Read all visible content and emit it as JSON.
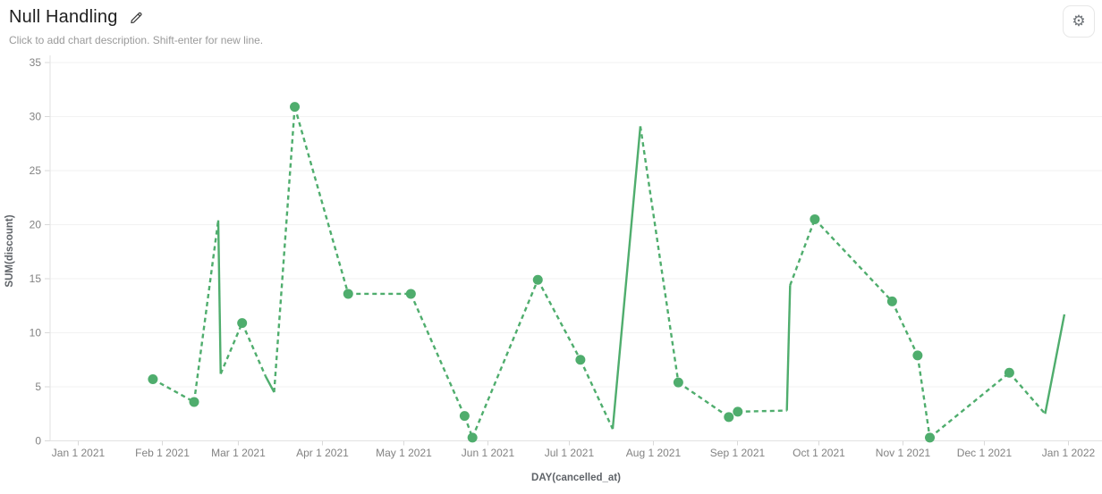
{
  "header": {
    "title": "Null Handling",
    "description_placeholder": "Click to add chart description. Shift-enter for new line."
  },
  "settings": {
    "gear_glyph": "⚙"
  },
  "colors": {
    "series_green": "#4FAD6D",
    "gridline": "#f2f2f2",
    "axis_line": "#e2e2e2",
    "tick_mark": "#d9d9d9",
    "tick_text": "#828282",
    "axis_title_text": "#5f6368",
    "title_text": "#1f1f1f",
    "description_text": "#9a9a9a"
  },
  "chart_data": {
    "type": "line",
    "title": "Null Handling",
    "xlabel": "DAY(cancelled_at)",
    "ylabel": "SUM(discount)",
    "legend": "none",
    "grid": "horizontal",
    "x_axis": {
      "start": "Jan 1 2021",
      "end": "Jan 1 2022",
      "tick_days": [
        0,
        31,
        59,
        90,
        120,
        151,
        181,
        212,
        243,
        273,
        304,
        334,
        365
      ],
      "tick_labels": [
        "Jan 1 2021",
        "Feb 1 2021",
        "Mar 1 2021",
        "Apr 1 2021",
        "May 1 2021",
        "Jun 1 2021",
        "Jul 1 2021",
        "Aug 1 2021",
        "Sep 1 2021",
        "Oct 1 2021",
        "Nov 1 2021",
        "Dec 1 2021",
        "Jan 1 2022"
      ]
    },
    "y_axis": {
      "min": 0,
      "max": 35,
      "ticks": [
        0,
        5,
        10,
        15,
        20,
        25,
        30,
        35
      ]
    },
    "line_style_note": "dashed line with round markers; solid segments bridge null values (no marker at solid-bridge vertices)",
    "series": [
      {
        "name": "SUM(discount)",
        "color": "#4FAD6D",
        "points": [
          {
            "day": 27.5,
            "date": "Jan 28 2021",
            "value": 5.7,
            "marker": true,
            "solid_to_next": false
          },
          {
            "day": 42.7,
            "date": "Feb 12 2021",
            "value": 3.6,
            "marker": true,
            "solid_to_next": false
          },
          {
            "day": 51.6,
            "date": "Feb 22 2021",
            "value": 20.4,
            "marker": false,
            "solid_to_next": true
          },
          {
            "day": 52.5,
            "date": "Feb 22 2021",
            "value": 6.2,
            "marker": false,
            "solid_to_next": false
          },
          {
            "day": 60.4,
            "date": "Mar 2 2021",
            "value": 10.9,
            "marker": true,
            "solid_to_next": false
          },
          {
            "day": 69.0,
            "date": "Mar 11 2021",
            "value": 6.0,
            "marker": false,
            "solid_to_next": true
          },
          {
            "day": 72.2,
            "date": "Mar 14 2021",
            "value": 4.5,
            "marker": false,
            "solid_to_next": false
          },
          {
            "day": 79.8,
            "date": "Mar 21 2021",
            "value": 30.9,
            "marker": true,
            "solid_to_next": false
          },
          {
            "day": 99.5,
            "date": "Apr 10 2021",
            "value": 13.6,
            "marker": true,
            "solid_to_next": false
          },
          {
            "day": 122.6,
            "date": "May 3 2021",
            "value": 13.6,
            "marker": true,
            "solid_to_next": false
          },
          {
            "day": 142.4,
            "date": "May 23 2021",
            "value": 2.3,
            "marker": true,
            "solid_to_next": false
          },
          {
            "day": 145.3,
            "date": "May 26 2021",
            "value": 0.3,
            "marker": true,
            "solid_to_next": false
          },
          {
            "day": 169.4,
            "date": "Jun 19 2021",
            "value": 14.9,
            "marker": true,
            "solid_to_next": false
          },
          {
            "day": 185.1,
            "date": "Jul 5 2021",
            "value": 7.5,
            "marker": true,
            "solid_to_next": false
          },
          {
            "day": 197.0,
            "date": "Jul 17 2021",
            "value": 1.1,
            "marker": false,
            "solid_to_next": true
          },
          {
            "day": 207.2,
            "date": "Jul 27 2021",
            "value": 29.1,
            "marker": false,
            "solid_to_next": false
          },
          {
            "day": 221.2,
            "date": "Aug 10 2021",
            "value": 5.4,
            "marker": true,
            "solid_to_next": false
          },
          {
            "day": 239.8,
            "date": "Aug 28 2021",
            "value": 2.2,
            "marker": true,
            "solid_to_next": false
          },
          {
            "day": 243.1,
            "date": "Sep 1 2021",
            "value": 2.7,
            "marker": true,
            "solid_to_next": false
          },
          {
            "day": 261.2,
            "date": "Sep 19 2021",
            "value": 2.8,
            "marker": false,
            "solid_to_next": true
          },
          {
            "day": 262.4,
            "date": "Sep 20 2021",
            "value": 14.4,
            "marker": false,
            "solid_to_next": false
          },
          {
            "day": 271.5,
            "date": "Sep 29 2021",
            "value": 20.5,
            "marker": true,
            "solid_to_next": false
          },
          {
            "day": 300.0,
            "date": "Oct 28 2021",
            "value": 12.9,
            "marker": true,
            "solid_to_next": false
          },
          {
            "day": 309.4,
            "date": "Nov 6 2021",
            "value": 7.9,
            "marker": true,
            "solid_to_next": false
          },
          {
            "day": 313.9,
            "date": "Nov 11 2021",
            "value": 0.3,
            "marker": true,
            "solid_to_next": false
          },
          {
            "day": 343.2,
            "date": "Dec 10 2021",
            "value": 6.3,
            "marker": true,
            "solid_to_next": false
          },
          {
            "day": 356.4,
            "date": "Dec 23 2021",
            "value": 2.5,
            "marker": false,
            "solid_to_next": true
          },
          {
            "day": 363.5,
            "date": "Dec 30 2021",
            "value": 11.7,
            "marker": false,
            "solid_to_next": false
          }
        ]
      }
    ]
  }
}
